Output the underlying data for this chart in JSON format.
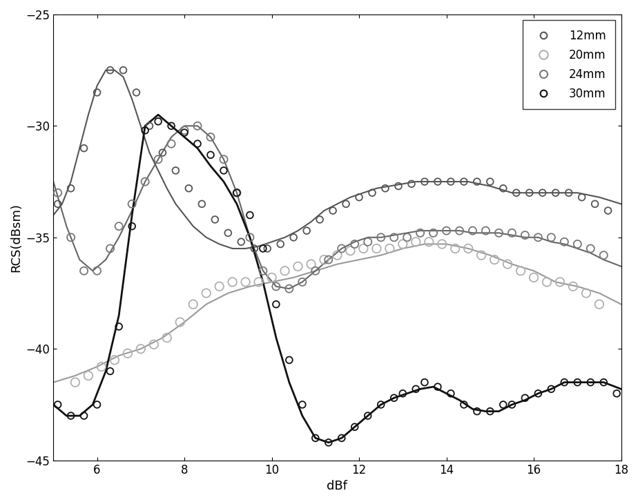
{
  "title": "",
  "xlabel": "dBf",
  "ylabel": "RCS(dBsm)",
  "xlim": [
    5,
    18
  ],
  "ylim": [
    -45,
    -25
  ],
  "xticks": [
    6,
    8,
    10,
    12,
    14,
    16,
    18
  ],
  "yticks": [
    -45,
    -40,
    -35,
    -30,
    -25
  ],
  "series": [
    {
      "label": "12mm",
      "scatter_color": "#555555",
      "line_color": "#555555",
      "line_width": 1.5,
      "marker_size": 7,
      "scatter_x": [
        5.1,
        5.4,
        5.7,
        6.0,
        6.3,
        6.6,
        6.9,
        7.2,
        7.5,
        7.8,
        8.1,
        8.4,
        8.7,
        9.0,
        9.3,
        9.6,
        9.9,
        10.2,
        10.5,
        10.8,
        11.1,
        11.4,
        11.7,
        12.0,
        12.3,
        12.6,
        12.9,
        13.2,
        13.5,
        13.8,
        14.1,
        14.4,
        14.7,
        15.0,
        15.3,
        15.6,
        15.9,
        16.2,
        16.5,
        16.8,
        17.1,
        17.4,
        17.7
      ],
      "scatter_y": [
        -33.5,
        -32.8,
        -31.0,
        -28.5,
        -27.5,
        -27.5,
        -28.5,
        -30.0,
        -31.2,
        -32.0,
        -32.8,
        -33.5,
        -34.2,
        -34.8,
        -35.2,
        -35.5,
        -35.5,
        -35.3,
        -35.0,
        -34.7,
        -34.2,
        -33.8,
        -33.5,
        -33.2,
        -33.0,
        -32.8,
        -32.7,
        -32.6,
        -32.5,
        -32.5,
        -32.5,
        -32.5,
        -32.5,
        -32.5,
        -32.8,
        -33.0,
        -33.0,
        -33.0,
        -33.0,
        -33.0,
        -33.2,
        -33.5,
        -33.8
      ],
      "line_x": [
        5.0,
        5.2,
        5.4,
        5.6,
        5.8,
        6.0,
        6.2,
        6.4,
        6.6,
        6.8,
        7.0,
        7.2,
        7.4,
        7.6,
        7.8,
        8.0,
        8.2,
        8.5,
        8.8,
        9.1,
        9.4,
        9.7,
        10.0,
        10.3,
        10.6,
        10.9,
        11.2,
        11.5,
        11.8,
        12.1,
        12.4,
        12.7,
        13.0,
        13.3,
        13.6,
        14.0,
        14.5,
        15.0,
        15.5,
        16.0,
        16.5,
        17.0,
        17.5,
        18.0
      ],
      "line_y": [
        -34.0,
        -33.5,
        -32.5,
        -31.0,
        -29.5,
        -28.2,
        -27.5,
        -27.5,
        -27.8,
        -28.8,
        -30.0,
        -31.2,
        -32.0,
        -32.8,
        -33.5,
        -34.0,
        -34.5,
        -35.0,
        -35.3,
        -35.5,
        -35.5,
        -35.4,
        -35.2,
        -35.0,
        -34.7,
        -34.3,
        -33.8,
        -33.5,
        -33.2,
        -33.0,
        -32.8,
        -32.7,
        -32.6,
        -32.5,
        -32.5,
        -32.5,
        -32.5,
        -32.7,
        -33.0,
        -33.0,
        -33.0,
        -33.0,
        -33.2,
        -33.5
      ]
    },
    {
      "label": "20mm",
      "scatter_color": "#b0b0b0",
      "line_color": "#999999",
      "line_width": 1.5,
      "marker_size": 9,
      "scatter_x": [
        5.5,
        5.8,
        6.1,
        6.4,
        6.7,
        7.0,
        7.3,
        7.6,
        7.9,
        8.2,
        8.5,
        8.8,
        9.1,
        9.4,
        9.7,
        10.0,
        10.3,
        10.6,
        10.9,
        11.2,
        11.5,
        11.8,
        12.1,
        12.4,
        12.7,
        13.0,
        13.3,
        13.6,
        13.9,
        14.2,
        14.5,
        14.8,
        15.1,
        15.4,
        15.7,
        16.0,
        16.3,
        16.6,
        16.9,
        17.2,
        17.5
      ],
      "scatter_y": [
        -41.5,
        -41.2,
        -40.8,
        -40.5,
        -40.2,
        -40.0,
        -39.8,
        -39.5,
        -38.8,
        -38.0,
        -37.5,
        -37.2,
        -37.0,
        -37.0,
        -37.0,
        -36.8,
        -36.5,
        -36.3,
        -36.2,
        -36.0,
        -35.8,
        -35.6,
        -35.5,
        -35.5,
        -35.5,
        -35.3,
        -35.2,
        -35.2,
        -35.3,
        -35.5,
        -35.5,
        -35.8,
        -36.0,
        -36.2,
        -36.5,
        -36.8,
        -37.0,
        -37.0,
        -37.2,
        -37.5,
        -38.0
      ],
      "line_x": [
        5.0,
        5.5,
        6.0,
        6.5,
        7.0,
        7.5,
        8.0,
        8.5,
        9.0,
        9.5,
        10.0,
        10.5,
        11.0,
        11.5,
        12.0,
        12.5,
        13.0,
        13.5,
        14.0,
        14.5,
        15.0,
        15.5,
        16.0,
        16.5,
        17.0,
        17.5,
        18.0
      ],
      "line_y": [
        -41.5,
        -41.2,
        -40.8,
        -40.3,
        -40.0,
        -39.5,
        -38.8,
        -38.0,
        -37.5,
        -37.2,
        -37.0,
        -36.8,
        -36.5,
        -36.2,
        -36.0,
        -35.8,
        -35.5,
        -35.3,
        -35.3,
        -35.5,
        -35.8,
        -36.2,
        -36.5,
        -37.0,
        -37.2,
        -37.5,
        -38.0
      ]
    },
    {
      "label": "24mm",
      "scatter_color": "#777777",
      "line_color": "#666666",
      "line_width": 1.5,
      "marker_size": 8,
      "scatter_x": [
        5.1,
        5.4,
        5.7,
        6.0,
        6.3,
        6.5,
        6.8,
        7.1,
        7.4,
        7.7,
        8.0,
        8.3,
        8.6,
        8.9,
        9.2,
        9.5,
        9.8,
        10.1,
        10.4,
        10.7,
        11.0,
        11.3,
        11.6,
        11.9,
        12.2,
        12.5,
        12.8,
        13.1,
        13.4,
        13.7,
        14.0,
        14.3,
        14.6,
        14.9,
        15.2,
        15.5,
        15.8,
        16.1,
        16.4,
        16.7,
        17.0,
        17.3,
        17.6
      ],
      "scatter_y": [
        -33.0,
        -35.0,
        -36.5,
        -36.5,
        -35.5,
        -34.5,
        -33.5,
        -32.5,
        -31.5,
        -30.8,
        -30.2,
        -30.0,
        -30.5,
        -31.5,
        -33.0,
        -35.0,
        -36.5,
        -37.2,
        -37.3,
        -37.0,
        -36.5,
        -36.0,
        -35.5,
        -35.3,
        -35.2,
        -35.0,
        -35.0,
        -35.0,
        -34.8,
        -34.8,
        -34.7,
        -34.7,
        -34.7,
        -34.7,
        -34.8,
        -34.8,
        -34.9,
        -35.0,
        -35.0,
        -35.2,
        -35.3,
        -35.5,
        -35.8
      ],
      "line_x": [
        5.0,
        5.3,
        5.6,
        5.9,
        6.2,
        6.5,
        6.8,
        7.1,
        7.4,
        7.7,
        8.0,
        8.3,
        8.6,
        8.9,
        9.2,
        9.5,
        9.8,
        10.1,
        10.4,
        10.7,
        11.0,
        11.3,
        11.6,
        11.9,
        12.2,
        12.5,
        12.8,
        13.1,
        13.4,
        13.7,
        14.0,
        14.3,
        14.6,
        14.9,
        15.2,
        15.5,
        15.8,
        16.1,
        16.4,
        16.7,
        17.0,
        17.3,
        17.6,
        18.0
      ],
      "line_y": [
        -32.5,
        -34.5,
        -36.0,
        -36.5,
        -36.0,
        -35.0,
        -33.8,
        -32.5,
        -31.5,
        -30.5,
        -30.0,
        -30.0,
        -30.5,
        -31.5,
        -33.0,
        -35.0,
        -36.5,
        -37.2,
        -37.3,
        -37.0,
        -36.5,
        -36.0,
        -35.5,
        -35.2,
        -35.0,
        -35.0,
        -34.9,
        -34.8,
        -34.7,
        -34.7,
        -34.7,
        -34.7,
        -34.8,
        -34.8,
        -34.8,
        -34.9,
        -35.0,
        -35.0,
        -35.2,
        -35.3,
        -35.5,
        -35.7,
        -36.0,
        -36.3
      ]
    },
    {
      "label": "30mm",
      "scatter_color": "#111111",
      "line_color": "#111111",
      "line_width": 2.0,
      "marker_size": 7,
      "scatter_x": [
        5.1,
        5.4,
        5.7,
        6.0,
        6.3,
        6.5,
        6.8,
        7.1,
        7.4,
        7.7,
        8.0,
        8.3,
        8.6,
        8.9,
        9.2,
        9.5,
        9.8,
        10.1,
        10.4,
        10.7,
        11.0,
        11.3,
        11.6,
        11.9,
        12.2,
        12.5,
        12.8,
        13.0,
        13.3,
        13.5,
        13.8,
        14.1,
        14.4,
        14.7,
        15.0,
        15.3,
        15.5,
        15.8,
        16.1,
        16.4,
        16.7,
        17.0,
        17.3,
        17.6,
        17.9
      ],
      "scatter_y": [
        -42.5,
        -43.0,
        -43.0,
        -42.5,
        -41.0,
        -39.0,
        -34.5,
        -30.2,
        -29.8,
        -30.0,
        -30.3,
        -30.8,
        -31.3,
        -32.0,
        -33.0,
        -34.0,
        -35.5,
        -38.0,
        -40.5,
        -42.5,
        -44.0,
        -44.2,
        -44.0,
        -43.5,
        -43.0,
        -42.5,
        -42.2,
        -42.0,
        -41.8,
        -41.5,
        -41.7,
        -42.0,
        -42.5,
        -42.8,
        -42.8,
        -42.5,
        -42.5,
        -42.2,
        -42.0,
        -41.8,
        -41.5,
        -41.5,
        -41.5,
        -41.5,
        -42.0
      ],
      "line_x": [
        5.0,
        5.3,
        5.6,
        5.9,
        6.2,
        6.5,
        6.8,
        7.1,
        7.4,
        7.7,
        8.0,
        8.3,
        8.6,
        8.9,
        9.2,
        9.5,
        9.8,
        10.1,
        10.4,
        10.7,
        11.0,
        11.3,
        11.6,
        11.9,
        12.2,
        12.5,
        12.8,
        13.1,
        13.4,
        13.7,
        14.0,
        14.3,
        14.6,
        14.9,
        15.2,
        15.5,
        15.8,
        16.1,
        16.4,
        16.7,
        17.0,
        17.3,
        17.6,
        18.0
      ],
      "line_y": [
        -42.5,
        -43.0,
        -43.0,
        -42.5,
        -41.0,
        -38.5,
        -34.0,
        -30.0,
        -29.5,
        -30.0,
        -30.5,
        -31.0,
        -31.8,
        -32.5,
        -33.5,
        -35.0,
        -37.0,
        -39.5,
        -41.5,
        -43.0,
        -44.0,
        -44.2,
        -44.0,
        -43.5,
        -43.0,
        -42.5,
        -42.2,
        -42.0,
        -41.8,
        -41.7,
        -42.0,
        -42.3,
        -42.7,
        -42.8,
        -42.8,
        -42.5,
        -42.3,
        -42.0,
        -41.8,
        -41.5,
        -41.5,
        -41.5,
        -41.5,
        -41.8
      ]
    }
  ],
  "background_color": "#ffffff"
}
